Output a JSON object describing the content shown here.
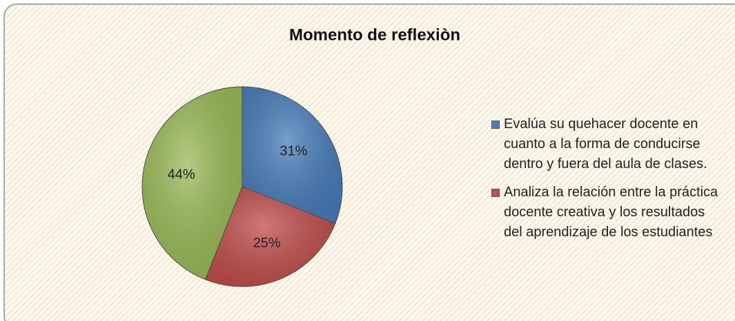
{
  "chart_data": {
    "type": "pie",
    "title": "Momento de reflexiòn",
    "categories": [
      "Evalúa su quehacer docente en cuanto a la forma de conducirse dentro y fuera del aula de clases.",
      "Analiza la relación entre la práctica docente creativa y los resultados del aprendizaje de los estudiantes",
      null
    ],
    "values": [
      31,
      25,
      44
    ],
    "value_labels": [
      "31%",
      "25%",
      "44%"
    ],
    "colors": [
      "#4a7ebb",
      "#c0504d",
      "#9bbb59"
    ],
    "legend": "right"
  }
}
